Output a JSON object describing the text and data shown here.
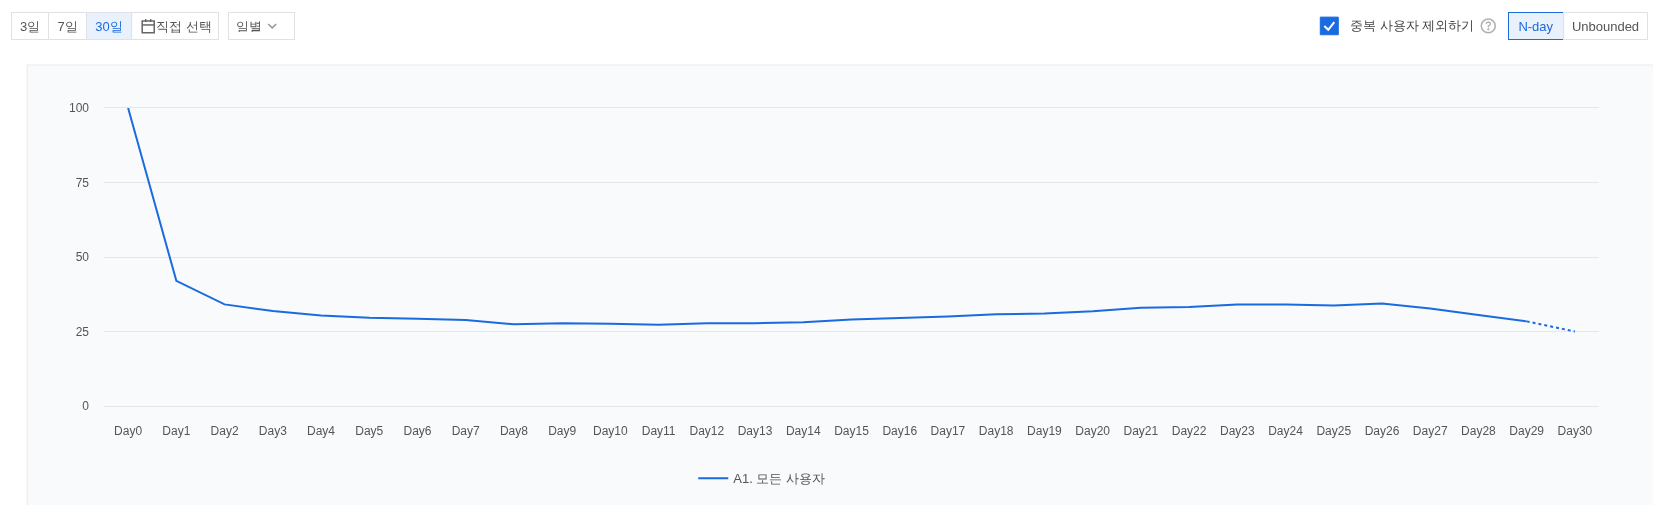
{
  "chart_data": {
    "type": "line",
    "categories": [
      "Day0",
      "Day1",
      "Day2",
      "Day3",
      "Day4",
      "Day5",
      "Day6",
      "Day7",
      "Day8",
      "Day9",
      "Day10",
      "Day11",
      "Day12",
      "Day13",
      "Day14",
      "Day15",
      "Day16",
      "Day17",
      "Day18",
      "Day19",
      "Day20",
      "Day21",
      "Day22",
      "Day23",
      "Day24",
      "Day25",
      "Day26",
      "Day27",
      "Day28",
      "Day29",
      "Day30"
    ],
    "series": [
      {
        "name": "A1. 모든 사용자",
        "color": "#1a6ae0",
        "values": [
          100,
          42.0,
          34.1,
          31.9,
          30.4,
          29.6,
          29.3,
          28.9,
          27.4,
          27.8,
          27.6,
          27.3,
          27.8,
          27.8,
          28.1,
          29.0,
          29.5,
          30.0,
          30.8,
          31.0,
          31.8,
          33.0,
          33.2,
          34.1,
          34.1,
          33.7,
          34.4,
          32.7,
          30.5,
          28.4,
          null
        ]
      },
      {
        "color": "#1a6ae0",
        "line_style": "dotted",
        "values": [
          null,
          null,
          null,
          null,
          null,
          null,
          null,
          null,
          null,
          null,
          null,
          null,
          null,
          null,
          null,
          null,
          null,
          null,
          null,
          null,
          null,
          null,
          null,
          null,
          null,
          null,
          null,
          null,
          null,
          28.4,
          25.0
        ]
      }
    ],
    "ylim": [
      0,
      100
    ],
    "yticks": [
      0,
      25,
      50,
      75,
      100
    ],
    "grid": "y",
    "legend": "bottom",
    "line_style": "solid",
    "annotations": [
      "3일",
      "7일",
      "30일",
      "직접 선택",
      "일별",
      "중복 사용자 제외하기",
      "N-day",
      "Unbounded"
    ]
  }
}
